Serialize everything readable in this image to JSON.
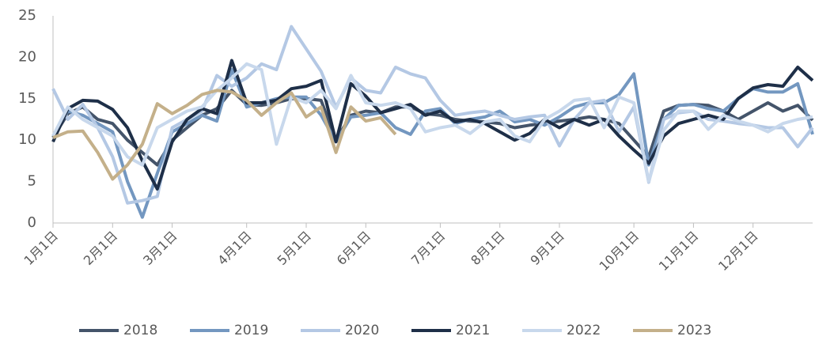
{
  "chart_data": {
    "type": "line",
    "categories": [
      "1月1日",
      null,
      null,
      null,
      "2月1日",
      null,
      null,
      null,
      "3月1日",
      null,
      null,
      null,
      null,
      "4月1日",
      null,
      null,
      null,
      "5月1日",
      null,
      null,
      null,
      "6月1日",
      null,
      null,
      null,
      null,
      "7月1日",
      null,
      null,
      null,
      "8月1日",
      null,
      null,
      null,
      "9月1日",
      null,
      null,
      null,
      null,
      "10月1日",
      null,
      null,
      null,
      "11月1日",
      null,
      null,
      null,
      "12月1日",
      null,
      null,
      null,
      null
    ],
    "series": [
      {
        "name": "2018",
        "color": "#44546a",
        "values": [
          10.3,
          13.2,
          14.0,
          12.5,
          12,
          10,
          8.5,
          7,
          10,
          11.5,
          13,
          13.8,
          16,
          14.3,
          14.2,
          14.5,
          15,
          15,
          14.8,
          10,
          13,
          13.5,
          13.3,
          14,
          14,
          13.2,
          13,
          12.5,
          12.3,
          12.2,
          12,
          11.5,
          11.8,
          12,
          12.3,
          12.5,
          12.8,
          12.5,
          12,
          10,
          8,
          13.5,
          14.2,
          14.3,
          14.2,
          13.5,
          12.5,
          13.5,
          14.5,
          13.5,
          14.2,
          12.4
        ]
      },
      {
        "name": "2019",
        "color": "#7397c0",
        "values": [
          10.5,
          13.5,
          13,
          12,
          11,
          5,
          0.7,
          6,
          11,
          12,
          13,
          12.3,
          18.5,
          14,
          14.5,
          15,
          15.2,
          15.2,
          13,
          9.8,
          12.8,
          13,
          13.3,
          11.5,
          10.7,
          13.5,
          13.8,
          12,
          12.5,
          12.8,
          13.5,
          12.2,
          12.5,
          11.8,
          12.8,
          14,
          14.5,
          14.5,
          15.5,
          18,
          7,
          12.5,
          14.2,
          14.3,
          13.8,
          13.5,
          15,
          16.2,
          15.8,
          15.8,
          16.8,
          10.7
        ]
      },
      {
        "name": "2020",
        "color": "#b4c8e4",
        "values": [
          16.2,
          12.5,
          14.3,
          11.5,
          8,
          2.4,
          2.7,
          3.2,
          11.5,
          12.5,
          13.5,
          17.8,
          16.5,
          17.5,
          19.2,
          18.5,
          23.7,
          21,
          18.3,
          14,
          17.5,
          16,
          15.7,
          18.8,
          18,
          17.5,
          14.8,
          13,
          13.3,
          13.5,
          13,
          12.5,
          12.8,
          13,
          9.3,
          12.5,
          14.5,
          14.8,
          11,
          14,
          4.9,
          12.5,
          13.3,
          13.5,
          12.5,
          12.3,
          12,
          11.8,
          11.5,
          11.5,
          9.2,
          11.5
        ]
      },
      {
        "name": "2021",
        "color": "#1e2f48",
        "values": [
          9.8,
          13.8,
          14.8,
          14.7,
          13.7,
          11.5,
          7.5,
          4.1,
          9.8,
          12.5,
          13.8,
          13.2,
          19.6,
          14.5,
          14.5,
          14.8,
          16.2,
          16.5,
          17.2,
          9.8,
          16.8,
          15.3,
          13.3,
          13.8,
          14.3,
          13.0,
          13.5,
          12.2,
          12.5,
          12.0,
          11.0,
          10.0,
          10.8,
          12.5,
          11.5,
          12.5,
          11.8,
          12.5,
          10.5,
          8.8,
          7.2,
          10.5,
          12.0,
          12.5,
          13.0,
          12.5,
          15.0,
          16.3,
          16.7,
          16.5,
          18.8,
          17.2
        ]
      },
      {
        "name": "2022",
        "color": "#c8d8ec",
        "values": [
          10.5,
          14,
          12.5,
          11.5,
          10.5,
          8,
          7,
          11.5,
          12.5,
          13.5,
          14,
          16,
          17.5,
          19.2,
          18.5,
          9.5,
          15.2,
          14.5,
          16,
          13.8,
          17.8,
          14.5,
          14.2,
          14.5,
          13.8,
          11,
          11.5,
          11.8,
          10.8,
          12.2,
          12.5,
          10.5,
          9.8,
          12.5,
          13.5,
          14.8,
          15,
          11.5,
          15.2,
          14.5,
          5,
          11.2,
          13.5,
          13.5,
          11.3,
          13,
          12.3,
          11.8,
          11,
          12,
          12.5,
          12.8
        ]
      },
      {
        "name": "2023",
        "color": "#c4b08a",
        "values": [
          10.3,
          11,
          11.1,
          8.5,
          5.3,
          7,
          9.5,
          14.4,
          13.2,
          14.2,
          15.5,
          16,
          15.8,
          14.8,
          13,
          14.5,
          15.7,
          12.8,
          14,
          8.5,
          14,
          12.3,
          12.7,
          10.7,
          null,
          null,
          null,
          null,
          null,
          null,
          null,
          null,
          null,
          null,
          null,
          null,
          null,
          null,
          null,
          null,
          null,
          null,
          null,
          null,
          null,
          null,
          null,
          null,
          null,
          null,
          null,
          null
        ]
      }
    ],
    "ylim": [
      0,
      25
    ],
    "yticks": [
      0,
      5,
      10,
      15,
      20,
      25
    ],
    "grid": false,
    "legend": "bottom"
  }
}
